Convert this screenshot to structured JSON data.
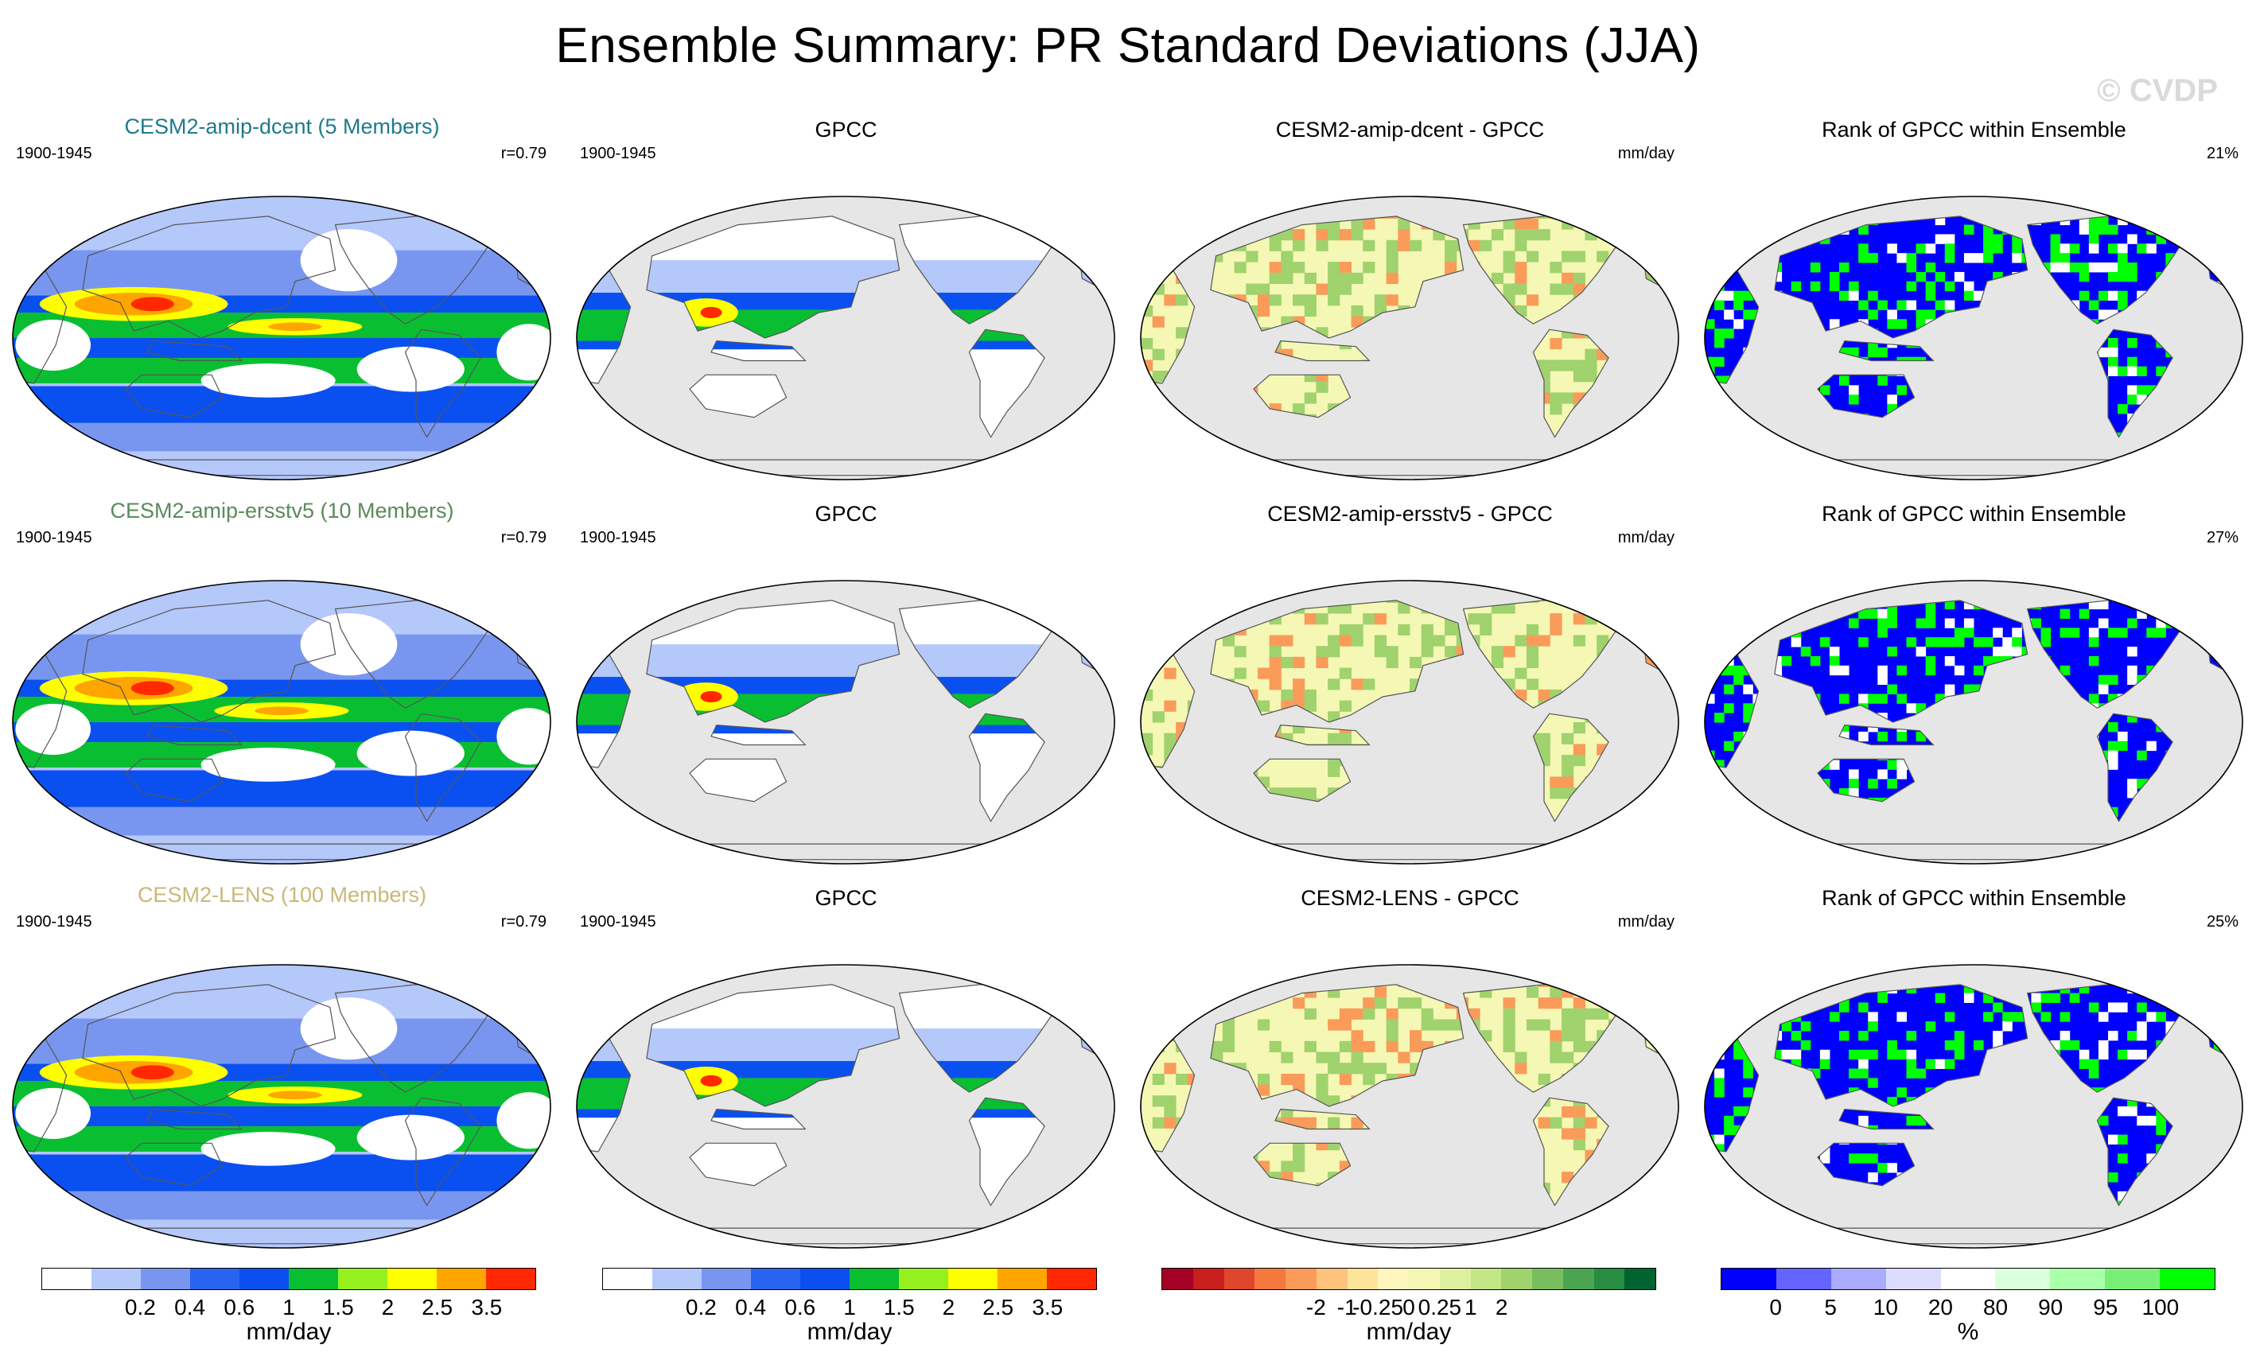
{
  "title": "Ensemble Summary: PR Standard Deviations (JJA)",
  "watermark": "© CVDP",
  "rows": [
    {
      "model_title": "CESM2-amip-dcent (5 Members)",
      "model_color": "#1f7a8c",
      "period": "1900-1945",
      "r_value": "r=0.79",
      "gpcc_title": "GPCC",
      "gpcc_period": "1900-1945",
      "diff_title": "CESM2-amip-dcent - GPCC",
      "diff_units": "mm/day",
      "rank_title": "Rank of GPCC within Ensemble",
      "rank_pct": "21%"
    },
    {
      "model_title": "CESM2-amip-ersstv5 (10 Members)",
      "model_color": "#5c8a5a",
      "period": "1900-1945",
      "r_value": "r=0.79",
      "gpcc_title": "GPCC",
      "gpcc_period": "1900-1945",
      "diff_title": "CESM2-amip-ersstv5 - GPCC",
      "diff_units": "mm/day",
      "rank_title": "Rank of GPCC within Ensemble",
      "rank_pct": "27%"
    },
    {
      "model_title": "CESM2-LENS (100 Members)",
      "model_color": "#c9b878",
      "period": "1900-1945",
      "r_value": "r=0.79",
      "gpcc_title": "GPCC",
      "gpcc_period": "1900-1945",
      "diff_title": "CESM2-LENS - GPCC",
      "diff_units": "mm/day",
      "rank_title": "Rank of GPCC within Ensemble",
      "rank_pct": "25%"
    }
  ],
  "colorbars": {
    "precip": {
      "colors": [
        "#ffffff",
        "#b4c8fa",
        "#7896f0",
        "#2864f0",
        "#0a50f0",
        "#0abe32",
        "#96f01e",
        "#ffff00",
        "#ffa500",
        "#ff2800"
      ],
      "labels": [
        "0.2",
        "0.4",
        "0.6",
        "1",
        "1.5",
        "2",
        "2.5",
        "3.5"
      ],
      "units": "mm/day"
    },
    "diff": {
      "colors": [
        "#a50026",
        "#c81e1e",
        "#e0462d",
        "#f5783c",
        "#fa9b5a",
        "#fdc37d",
        "#fee39b",
        "#fff5be",
        "#f5f8b4",
        "#dcf0a0",
        "#c3e687",
        "#a0d26e",
        "#78be5f",
        "#4ba550",
        "#288c41",
        "#006432"
      ],
      "labels": [
        "-2",
        "-1",
        "-0.25",
        "0",
        "0.25",
        "1",
        "2"
      ],
      "units": "mm/day"
    },
    "rank": {
      "colors": [
        "#0000ff",
        "#6464ff",
        "#aaaaff",
        "#dcdcff",
        "#ffffff",
        "#dcffdc",
        "#aaffaa",
        "#78f078",
        "#00ff00"
      ],
      "labels": [
        "0",
        "5",
        "10",
        "20",
        "80",
        "90",
        "95",
        "100"
      ],
      "units": "%"
    }
  },
  "map_colors": {
    "land": "#e6e6e6",
    "coast": "#555555",
    "precip_light": "#b4c8fa",
    "precip_mid": "#7896f0",
    "precip_blue": "#0a50f0",
    "precip_green": "#0abe32",
    "precip_yellow": "#ffff00",
    "precip_orange": "#ffa500",
    "precip_red": "#ff2800",
    "diff_light": "#f5f8b4",
    "diff_green": "#a0d26e",
    "diff_orange": "#fa9b5a",
    "rank_blue": "#0000ff",
    "rank_green": "#00ff00"
  }
}
